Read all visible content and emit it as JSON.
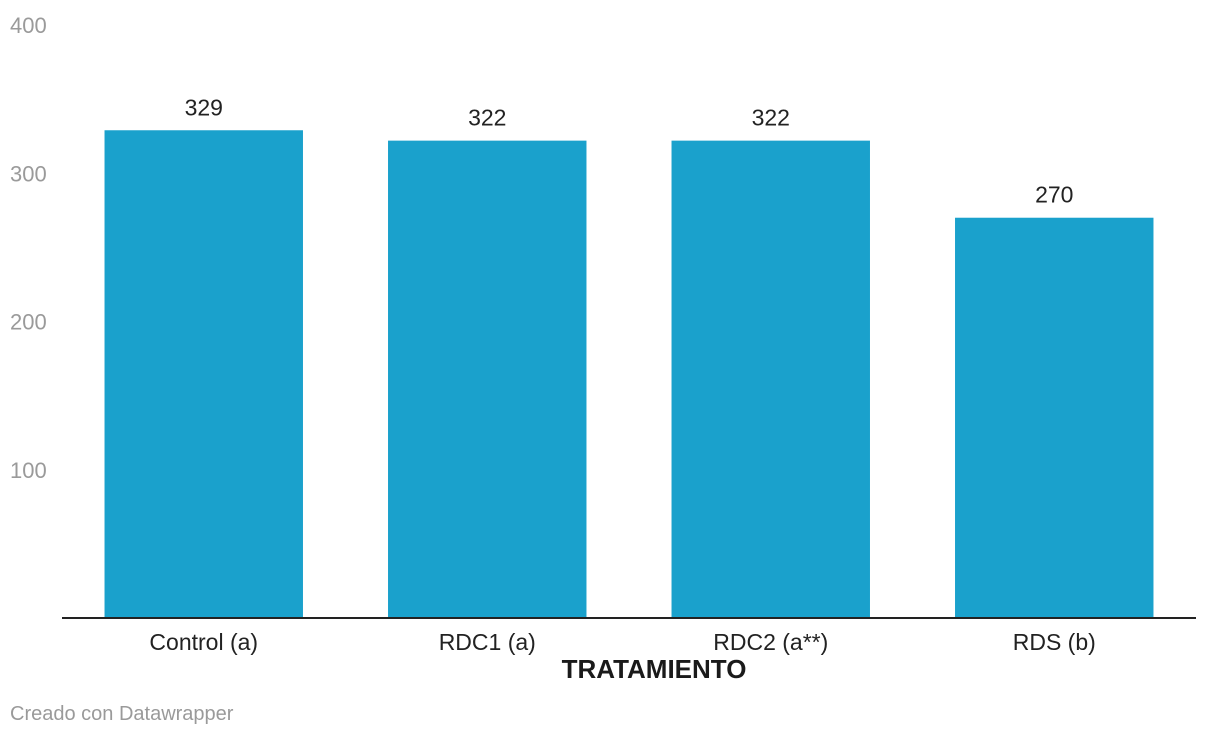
{
  "chart_data": {
    "type": "bar",
    "categories": [
      "Control (a)",
      "RDC1 (a)",
      "RDC2 (a**)",
      "RDS (b)"
    ],
    "values": [
      329,
      322,
      322,
      270
    ],
    "title": "",
    "xlabel": "TRATAMIENTO",
    "ylabel": "",
    "ylim": [
      0,
      400
    ],
    "yticks": [
      100,
      200,
      300,
      400
    ],
    "grid": false,
    "bar_color": "#1aa1cc"
  },
  "footer": {
    "credit": "Creado con Datawrapper"
  }
}
